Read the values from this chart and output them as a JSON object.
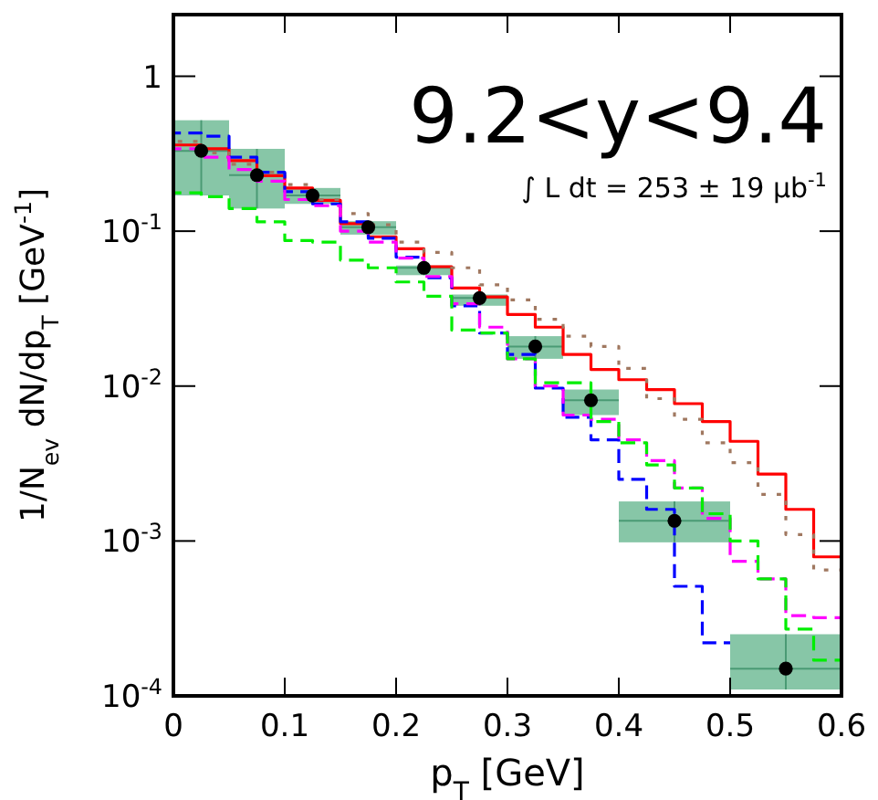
{
  "chart_data": {
    "type": "scatter",
    "annotations": [
      "9.2<y<9.4",
      "∫ L dt = 253 ± 19 μb$^{-1}$"
    ],
    "xlabel": "p$_{T}$ [GeV]",
    "ylabel": "1/N$_{ev}$ dN/dp$_{T}$ [GeV$^{-1}$]",
    "log": "y",
    "xlim": [
      0,
      0.6
    ],
    "xticks": [
      0,
      0.1,
      0.2,
      0.3,
      0.4,
      0.5,
      0.6
    ],
    "ylim": [
      0.0001,
      2.5
    ],
    "yticks": [
      {
        "value": 0.0001,
        "label": "10$^{-4}$"
      },
      {
        "value": 0.001,
        "label": "10$^{-3}$"
      },
      {
        "value": 0.01,
        "label": "10$^{-2}$"
      },
      {
        "value": 0.1,
        "label": "10$^{-1}$"
      },
      1
    ],
    "grid": false,
    "legend": false,
    "series": [
      {
        "type": "step",
        "color": "#ff0000",
        "line_style": "solid",
        "marker": "none",
        "x": [
          0,
          0.025,
          0.05,
          0.075,
          0.1,
          0.125,
          0.15,
          0.175,
          0.2,
          0.225,
          0.25,
          0.275,
          0.3,
          0.325,
          0.35,
          0.375,
          0.4,
          0.425,
          0.45,
          0.475,
          0.5,
          0.525,
          0.55,
          0.575,
          0.6
        ],
        "values": [
          0.36,
          0.34,
          0.285,
          0.228,
          0.19,
          0.158,
          0.112,
          0.092,
          0.077,
          0.059,
          0.043,
          0.0376,
          0.029,
          0.024,
          0.016,
          0.0128,
          0.011,
          0.0095,
          0.0077,
          0.0059,
          0.0044,
          0.0027,
          0.0016,
          0.00079,
          0.00079
        ]
      },
      {
        "type": "step",
        "color": "#a07860",
        "line_style": "dotted",
        "marker": "none",
        "x": [
          0,
          0.025,
          0.05,
          0.075,
          0.1,
          0.125,
          0.15,
          0.175,
          0.2,
          0.225,
          0.25,
          0.275,
          0.3,
          0.325,
          0.35,
          0.375,
          0.4,
          0.425,
          0.45,
          0.475,
          0.5,
          0.525,
          0.55,
          0.575,
          0.6
        ],
        "values": [
          0.38,
          0.32,
          0.27,
          0.24,
          0.2,
          0.16,
          0.13,
          0.11,
          0.085,
          0.073,
          0.058,
          0.045,
          0.036,
          0.027,
          0.021,
          0.018,
          0.013,
          0.0083,
          0.0061,
          0.0043,
          0.0032,
          0.002,
          0.0011,
          0.00065,
          0.00065
        ]
      },
      {
        "type": "step",
        "color": "#0000ff",
        "line_style": "dashed",
        "marker": "none",
        "x": [
          0,
          0.025,
          0.05,
          0.075,
          0.1,
          0.125,
          0.15,
          0.175,
          0.2,
          0.225,
          0.25,
          0.275,
          0.3,
          0.325,
          0.35,
          0.375,
          0.4,
          0.425,
          0.45,
          0.475,
          0.5
        ],
        "values": [
          0.43,
          0.41,
          0.3,
          0.24,
          0.18,
          0.15,
          0.115,
          0.09,
          0.068,
          0.05,
          0.033,
          0.022,
          0.016,
          0.0097,
          0.0063,
          0.0045,
          0.0025,
          0.0016,
          0.00051,
          0.00022,
          0.00022
        ]
      },
      {
        "type": "step",
        "color": "#ff00ff",
        "line_style": "dashed",
        "marker": "none",
        "x": [
          0,
          0.025,
          0.05,
          0.075,
          0.1,
          0.125,
          0.15,
          0.175,
          0.2,
          0.225,
          0.25,
          0.275,
          0.3,
          0.325,
          0.35,
          0.375,
          0.4,
          0.425,
          0.45,
          0.475,
          0.5,
          0.525,
          0.55,
          0.575,
          0.6
        ],
        "values": [
          0.34,
          0.3,
          0.25,
          0.21,
          0.16,
          0.146,
          0.1,
          0.085,
          0.067,
          0.051,
          0.034,
          0.024,
          0.015,
          0.01,
          0.0065,
          0.0061,
          0.0045,
          0.0033,
          0.0022,
          0.0014,
          0.00074,
          0.00057,
          0.00033,
          0.00032,
          0.00032
        ]
      },
      {
        "type": "step",
        "color": "#00ee00",
        "line_style": "dashed",
        "marker": "none",
        "x": [
          0,
          0.025,
          0.05,
          0.075,
          0.1,
          0.125,
          0.15,
          0.175,
          0.2,
          0.225,
          0.25,
          0.275,
          0.3,
          0.325,
          0.35,
          0.375,
          0.4,
          0.425,
          0.45,
          0.475,
          0.5,
          0.525,
          0.55,
          0.575,
          0.6
        ],
        "values": [
          0.177,
          0.167,
          0.14,
          0.115,
          0.087,
          0.085,
          0.065,
          0.058,
          0.047,
          0.038,
          0.023,
          0.022,
          0.015,
          0.0105,
          0.0105,
          0.0059,
          0.0043,
          0.0031,
          0.0022,
          0.0015,
          0.001,
          0.00057,
          0.00027,
          0.00017,
          0.00017
        ]
      },
      {
        "color": "#000000",
        "marker": "circle",
        "x": [
          0.025,
          0.075,
          0.125,
          0.175,
          0.225,
          0.275,
          0.325,
          0.375,
          0.45,
          0.55
        ],
        "values": [
          0.33,
          0.23,
          0.17,
          0.106,
          0.058,
          0.037,
          0.018,
          0.0081,
          0.00135,
          0.00015
        ],
        "errors": [
          [
            0.17,
            0.52
          ],
          [
            0.14,
            0.34
          ],
          [
            0.15,
            0.19
          ],
          [
            0.095,
            0.116
          ],
          [
            0.052,
            0.06
          ],
          [
            0.033,
            0.039
          ],
          [
            0.015,
            0.021
          ],
          [
            0.0065,
            0.0095
          ],
          [
            0.00098,
            0.0018
          ],
          [
            0.00011,
            0.00025
          ]
        ],
        "xerrors": [
          0.025,
          0.025,
          0.025,
          0.025,
          0.025,
          0.025,
          0.025,
          0.025,
          0.05,
          0.05
        ]
      }
    ]
  }
}
